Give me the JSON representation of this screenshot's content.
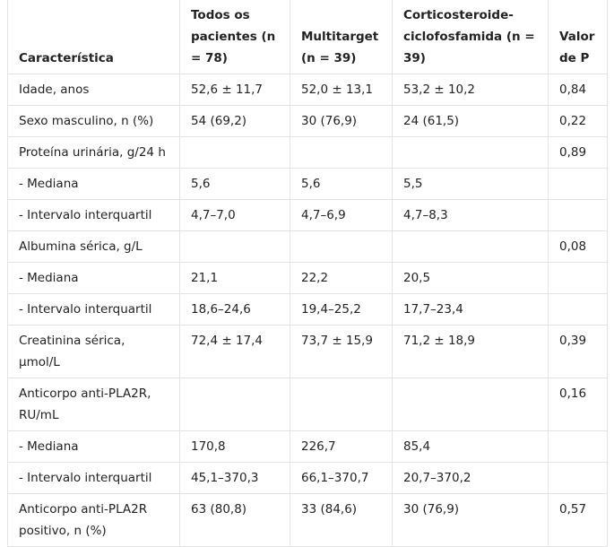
{
  "table": {
    "header": [
      "Característica",
      "Todos os pacientes (n = 78)",
      "Multitarget (n = 39)",
      "Corticosteroide-ciclofosfamida (n = 39)",
      "Valor de P"
    ],
    "rows": [
      [
        "Idade, anos",
        "52,6 ± 11,7",
        "52,0 ± 13,1",
        "53,2 ± 10,2",
        "0,84"
      ],
      [
        "Sexo masculino, n (%)",
        "54 (69,2)",
        "30 (76,9)",
        "24 (61,5)",
        "0,22"
      ],
      [
        "Proteína urinária, g/24 h",
        null,
        null,
        null,
        "0,89"
      ],
      [
        "- Mediana",
        "5,6",
        "5,6",
        "5,5",
        null
      ],
      [
        "- Intervalo interquartil",
        "4,7–7,0",
        "4,7–6,9",
        "4,7–8,3",
        null
      ],
      [
        "Albumina sérica, g/L",
        null,
        null,
        null,
        "0,08"
      ],
      [
        "- Mediana",
        "21,1",
        "22,2",
        "20,5",
        null
      ],
      [
        "- Intervalo interquartil",
        "18,6–24,6",
        "19,4–25,2",
        "17,7–23,4",
        null
      ],
      [
        "Creatinina sérica, µmol/L",
        "72,4 ± 17,4",
        "73,7 ± 15,9",
        "71,2 ± 18,9",
        "0,39"
      ],
      [
        "Anticorpo anti-PLA2R, RU/mL",
        null,
        null,
        null,
        "0,16"
      ],
      [
        "- Mediana",
        "170,8",
        "226,7",
        "85,4",
        null
      ],
      [
        "- Intervalo interquartil",
        "45,1–370,3",
        "66,1–370,7",
        "20,7–370,2",
        null
      ],
      [
        "Anticorpo anti-PLA2R positivo, n (%)",
        "63 (80,8)",
        "33 (84,6)",
        "30 (76,9)",
        "0,57"
      ]
    ]
  }
}
